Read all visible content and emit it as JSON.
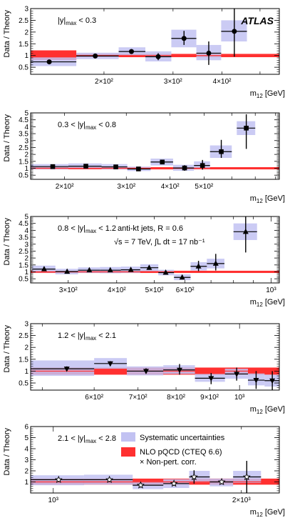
{
  "chart_data": [
    {
      "type": "scatter",
      "ylabel": "Data / Theory",
      "xlabel": "m12 [GeV]",
      "range_label": {
        "prefix": "",
        "var": "|y|",
        "sub": "max",
        "suffix": " < 0.3"
      },
      "watermark": "ATLAS",
      "x_scale": "log",
      "xlim": [
        130,
        560
      ],
      "ylim": [
        0.2,
        3.0
      ],
      "yticks": [
        0.5,
        1,
        1.5,
        2,
        2.5,
        3
      ],
      "xtick_labels": [
        {
          "value": 200,
          "label": "2×10²"
        },
        {
          "value": 300,
          "label": "3×10²"
        },
        {
          "value": 400,
          "label": "4×10²"
        }
      ],
      "marker": "circle",
      "points": [
        {
          "x": 145,
          "x_low": 130,
          "x_high": 170,
          "y": 0.73,
          "y_low": 0.66,
          "y_high": 0.8,
          "syst_low": 0.55,
          "syst_high": 0.92
        },
        {
          "x": 190,
          "x_low": 170,
          "x_high": 218,
          "y": 0.98,
          "y_low": 0.93,
          "y_high": 1.03,
          "syst_low": 0.85,
          "syst_high": 1.12
        },
        {
          "x": 235,
          "x_low": 218,
          "x_high": 255,
          "y": 1.17,
          "y_low": 1.07,
          "y_high": 1.27,
          "syst_low": 1.0,
          "syst_high": 1.35
        },
        {
          "x": 275,
          "x_low": 255,
          "x_high": 297,
          "y": 0.95,
          "y_low": 0.8,
          "y_high": 1.1,
          "syst_low": 0.75,
          "syst_high": 1.18
        },
        {
          "x": 320,
          "x_low": 297,
          "x_high": 344,
          "y": 1.73,
          "y_low": 1.45,
          "y_high": 2.05,
          "syst_low": 1.35,
          "syst_high": 2.1
        },
        {
          "x": 370,
          "x_low": 344,
          "x_high": 398,
          "y": 1.1,
          "y_low": 0.6,
          "y_high": 1.6,
          "syst_low": 0.8,
          "syst_high": 1.45
        },
        {
          "x": 430,
          "x_low": 398,
          "x_high": 463,
          "y": 2.03,
          "y_low": 0.95,
          "y_high": 3.0,
          "syst_low": 1.6,
          "syst_high": 2.5
        }
      ],
      "theory_band": [
        {
          "x_low": 130,
          "x_high": 170,
          "low": 0.8,
          "high": 1.22
        },
        {
          "x_low": 170,
          "x_high": 560,
          "low": 0.93,
          "high": 1.07
        }
      ]
    },
    {
      "type": "scatter",
      "ylabel": "Data / Theory",
      "xlabel": "m12 [GeV]",
      "range_label": {
        "prefix": "0.3 < ",
        "var": "|y|",
        "sub": "max",
        "suffix": " < 0.8"
      },
      "x_scale": "log",
      "xlim": [
        160,
        820
      ],
      "ylim": [
        0.2,
        5.0
      ],
      "yticks": [
        0.5,
        1,
        1.5,
        2,
        2.5,
        3,
        3.5,
        4,
        4.5,
        5
      ],
      "xtick_labels": [
        {
          "value": 200,
          "label": "2×10²"
        },
        {
          "value": 300,
          "label": "3×10²"
        },
        {
          "value": 400,
          "label": "4×10²"
        },
        {
          "value": 500,
          "label": "5×10²"
        }
      ],
      "marker": "square",
      "points": [
        {
          "x": 185,
          "x_low": 160,
          "x_high": 205,
          "y": 1.12,
          "y_low": 1.02,
          "y_high": 1.22,
          "syst_low": 0.92,
          "syst_high": 1.3
        },
        {
          "x": 230,
          "x_low": 205,
          "x_high": 255,
          "y": 1.15,
          "y_low": 1.07,
          "y_high": 1.23,
          "syst_low": 0.95,
          "syst_high": 1.35
        },
        {
          "x": 280,
          "x_low": 255,
          "x_high": 302,
          "y": 1.1,
          "y_low": 1.02,
          "y_high": 1.18,
          "syst_low": 0.92,
          "syst_high": 1.3
        },
        {
          "x": 325,
          "x_low": 302,
          "x_high": 352,
          "y": 0.95,
          "y_low": 0.86,
          "y_high": 1.04,
          "syst_low": 0.8,
          "syst_high": 1.12
        },
        {
          "x": 380,
          "x_low": 352,
          "x_high": 408,
          "y": 1.45,
          "y_low": 1.33,
          "y_high": 1.57,
          "syst_low": 1.2,
          "syst_high": 1.7
        },
        {
          "x": 440,
          "x_low": 408,
          "x_high": 468,
          "y": 1.02,
          "y_low": 0.82,
          "y_high": 1.22,
          "syst_low": 0.82,
          "syst_high": 1.25
        },
        {
          "x": 495,
          "x_low": 468,
          "x_high": 520,
          "y": 1.2,
          "y_low": 0.9,
          "y_high": 1.6,
          "syst_low": 0.95,
          "syst_high": 1.5
        },
        {
          "x": 560,
          "x_low": 520,
          "x_high": 600,
          "y": 2.2,
          "y_low": 1.75,
          "y_high": 3.05,
          "syst_low": 1.75,
          "syst_high": 2.65
        },
        {
          "x": 660,
          "x_low": 620,
          "x_high": 700,
          "y": 3.9,
          "y_low": 2.4,
          "y_high": 4.9,
          "syst_low": 3.4,
          "syst_high": 4.4
        }
      ],
      "theory_band": [
        {
          "x_low": 160,
          "x_high": 820,
          "low": 0.92,
          "high": 1.08
        }
      ]
    },
    {
      "type": "scatter",
      "ylabel": "Data / Theory",
      "xlabel": "m12 [GeV]",
      "range_label": {
        "prefix": "0.8 < ",
        "var": "|y|",
        "sub": "max",
        "suffix": " < 1.2"
      },
      "annotation_line1": "anti-kt jets, R = 0.6",
      "annotation_line2": "√s = 7 TeV, ∫L dt = 17 nb⁻¹",
      "x_scale": "log",
      "xlim": [
        240,
        1050
      ],
      "ylim": [
        0.2,
        5.0
      ],
      "yticks": [
        0.5,
        1,
        1.5,
        2,
        2.5,
        3,
        3.5,
        4,
        4.5,
        5
      ],
      "xtick_labels": [
        {
          "value": 300,
          "label": "3×10²"
        },
        {
          "value": 400,
          "label": "4×10²"
        },
        {
          "value": 500,
          "label": "5×10²"
        },
        {
          "value": 600,
          "label": "6×10²"
        },
        {
          "value": 1000,
          "label": "10³"
        }
      ],
      "marker": "triangle-up",
      "points": [
        {
          "x": 260,
          "x_low": 242,
          "x_high": 278,
          "y": 1.2,
          "y_low": 1.1,
          "y_high": 1.3,
          "syst_low": 0.95,
          "syst_high": 1.45
        },
        {
          "x": 298,
          "x_low": 278,
          "x_high": 318,
          "y": 1.02,
          "y_low": 0.94,
          "y_high": 1.1,
          "syst_low": 0.82,
          "syst_high": 1.22
        },
        {
          "x": 340,
          "x_low": 318,
          "x_high": 362,
          "y": 1.12,
          "y_low": 1.04,
          "y_high": 1.2,
          "syst_low": 0.92,
          "syst_high": 1.32
        },
        {
          "x": 385,
          "x_low": 362,
          "x_high": 410,
          "y": 1.12,
          "y_low": 1.04,
          "y_high": 1.2,
          "syst_low": 0.9,
          "syst_high": 1.35
        },
        {
          "x": 435,
          "x_low": 410,
          "x_high": 460,
          "y": 1.15,
          "y_low": 1.07,
          "y_high": 1.23,
          "syst_low": 0.92,
          "syst_high": 1.38
        },
        {
          "x": 485,
          "x_low": 460,
          "x_high": 512,
          "y": 1.3,
          "y_low": 1.15,
          "y_high": 1.45,
          "syst_low": 1.05,
          "syst_high": 1.55
        },
        {
          "x": 535,
          "x_low": 512,
          "x_high": 562,
          "y": 0.95,
          "y_low": 0.82,
          "y_high": 1.08,
          "syst_low": 0.75,
          "syst_high": 1.15
        },
        {
          "x": 590,
          "x_low": 562,
          "x_high": 620,
          "y": 0.6,
          "y_low": 0.45,
          "y_high": 0.75,
          "syst_low": 0.4,
          "syst_high": 0.82
        },
        {
          "x": 650,
          "x_low": 620,
          "x_high": 683,
          "y": 1.4,
          "y_low": 1.05,
          "y_high": 1.8,
          "syst_low": 1.1,
          "syst_high": 1.7
        },
        {
          "x": 720,
          "x_low": 683,
          "x_high": 758,
          "y": 1.6,
          "y_low": 1.1,
          "y_high": 2.3,
          "syst_low": 1.25,
          "syst_high": 1.95
        },
        {
          "x": 860,
          "x_low": 800,
          "x_high": 920,
          "y": 3.9,
          "y_low": 2.4,
          "y_high": 5.0,
          "syst_low": 3.3,
          "syst_high": 4.5
        }
      ],
      "theory_band": [
        {
          "x_low": 240,
          "x_high": 1050,
          "low": 0.92,
          "high": 1.08
        }
      ]
    },
    {
      "type": "scatter",
      "ylabel": "Data / Theory",
      "xlabel": "m12 [GeV]",
      "range_label": {
        "prefix": "1.2 < ",
        "var": "|y|",
        "sub": "max",
        "suffix": " < 2.1"
      },
      "x_scale": "log",
      "xlim": [
        480,
        1150
      ],
      "ylim": [
        0.2,
        3.0
      ],
      "yticks": [
        0.5,
        1,
        1.5,
        2,
        2.5,
        3
      ],
      "xtick_labels": [
        {
          "value": 600,
          "label": "6×10²"
        },
        {
          "value": 700,
          "label": "7×10²"
        },
        {
          "value": 800,
          "label": "8×10²"
        },
        {
          "value": 900,
          "label": "9×10²"
        },
        {
          "value": 1000,
          "label": "10³"
        }
      ],
      "marker": "triangle-down",
      "points": [
        {
          "x": 545,
          "x_low": 480,
          "x_high": 600,
          "y": 1.1,
          "y_low": 1.0,
          "y_high": 1.2,
          "syst_low": 0.8,
          "syst_high": 1.45
        },
        {
          "x": 635,
          "x_low": 600,
          "x_high": 673,
          "y": 1.32,
          "y_low": 1.22,
          "y_high": 1.42,
          "syst_low": 1.1,
          "syst_high": 1.55
        },
        {
          "x": 720,
          "x_low": 673,
          "x_high": 765,
          "y": 1.0,
          "y_low": 0.9,
          "y_high": 1.12,
          "syst_low": 0.82,
          "syst_high": 1.2
        },
        {
          "x": 810,
          "x_low": 765,
          "x_high": 855,
          "y": 1.05,
          "y_low": 0.85,
          "y_high": 1.3,
          "syst_low": 0.88,
          "syst_high": 1.25
        },
        {
          "x": 905,
          "x_low": 855,
          "x_high": 950,
          "y": 0.7,
          "y_low": 0.45,
          "y_high": 0.92,
          "syst_low": 0.55,
          "syst_high": 0.88
        },
        {
          "x": 990,
          "x_low": 950,
          "x_high": 1030,
          "y": 0.88,
          "y_low": 0.6,
          "y_high": 1.15,
          "syst_low": 0.68,
          "syst_high": 1.1
        },
        {
          "x": 1060,
          "x_low": 1030,
          "x_high": 1092,
          "y": 0.62,
          "y_low": 0.25,
          "y_high": 1.0,
          "syst_low": 0.4,
          "syst_high": 0.9
        },
        {
          "x": 1122,
          "x_low": 1092,
          "x_high": 1150,
          "y": 0.6,
          "y_low": 0.2,
          "y_high": 1.0,
          "syst_low": 0.35,
          "syst_high": 0.85
        }
      ],
      "theory_band": [
        {
          "x_low": 480,
          "x_high": 1150,
          "low": 0.85,
          "high": 1.15
        }
      ]
    },
    {
      "type": "scatter",
      "ylabel": "Data / Theory",
      "xlabel": "m12 [GeV]",
      "range_label": {
        "prefix": "2.1 < ",
        "var": "|y|",
        "sub": "max",
        "suffix": " < 2.8"
      },
      "x_scale": "log",
      "xlim": [
        920,
        2300
      ],
      "ylim": [
        0.0,
        6.0
      ],
      "yticks": [
        1,
        2,
        3,
        4,
        5,
        6
      ],
      "xtick_labels": [
        {
          "value": 1000,
          "label": "10³"
        },
        {
          "value": 2000,
          "label": "2×10³"
        }
      ],
      "marker": "star",
      "legend": [
        {
          "label": "Systematic uncertainties",
          "color": "#c2c2f2"
        },
        {
          "label": "NLO pQCD (CTEQ 6.6)",
          "color": "#ff3030"
        },
        {
          "label": "× Non-pert. corr.",
          "color": ""
        }
      ],
      "points": [
        {
          "x": 1020,
          "x_low": 920,
          "x_high": 1120,
          "y": 1.2,
          "y_low": 1.0,
          "y_high": 1.4,
          "syst_low": 0.7,
          "syst_high": 1.6
        },
        {
          "x": 1230,
          "x_low": 1120,
          "x_high": 1340,
          "y": 1.2,
          "y_low": 1.0,
          "y_high": 1.4,
          "syst_low": 0.75,
          "syst_high": 1.65
        },
        {
          "x": 1380,
          "x_low": 1340,
          "x_high": 1500,
          "y": 0.7,
          "y_low": 0.5,
          "y_high": 0.95,
          "syst_low": 0.35,
          "syst_high": 1.05
        },
        {
          "x": 1560,
          "x_low": 1500,
          "x_high": 1650,
          "y": 0.85,
          "y_low": 0.65,
          "y_high": 1.05,
          "syst_low": 0.45,
          "syst_high": 1.25
        },
        {
          "x": 1680,
          "x_low": 1650,
          "x_high": 1780,
          "y": 1.45,
          "y_low": 0.85,
          "y_high": 2.05,
          "syst_low": 0.95,
          "syst_high": 2.0
        },
        {
          "x": 1860,
          "x_low": 1780,
          "x_high": 1940,
          "y": 1.0,
          "y_low": 0.8,
          "y_high": 1.2,
          "syst_low": 0.6,
          "syst_high": 1.3
        },
        {
          "x": 2040,
          "x_low": 1940,
          "x_high": 2150,
          "y": 1.45,
          "y_low": 0.0,
          "y_high": 2.9,
          "syst_low": 0.9,
          "syst_high": 2.0
        }
      ],
      "theory_band": [
        {
          "x_low": 920,
          "x_high": 2300,
          "low": 0.75,
          "high": 1.3
        }
      ]
    }
  ]
}
